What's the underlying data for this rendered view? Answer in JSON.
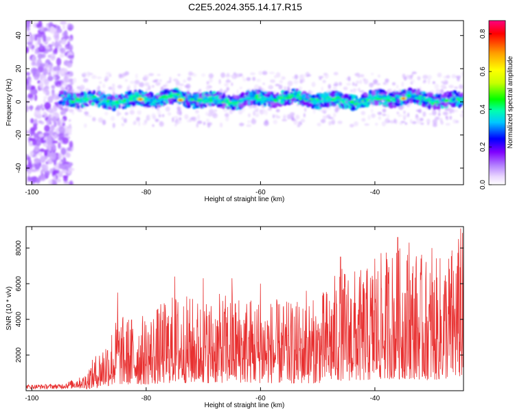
{
  "title": "C2E5.2024.355.14.17.R15",
  "chart_data": [
    {
      "type": "heatmap",
      "xlabel": "Height of straight line (km)",
      "ylabel": "Frequency (Hz)",
      "xlim": [
        -101,
        -24.5
      ],
      "ylim": [
        -50,
        49
      ],
      "xticks": [
        -100,
        -80,
        -60,
        -40
      ],
      "xtick_labels": [
        "-100",
        "-80",
        "-60",
        "-40"
      ],
      "yticks": [
        -40,
        -20,
        0,
        20,
        40
      ],
      "ytick_labels": [
        "-40",
        "-20",
        "0",
        "20",
        "40"
      ],
      "colorbar": {
        "label": "Normalized spectral amplitude",
        "range": [
          0,
          0.87
        ],
        "ticks": [
          0.0,
          0.2,
          0.4,
          0.6,
          0.8
        ],
        "tick_labels": [
          "0.0",
          "0.2",
          "0.4",
          "0.6",
          "0.8"
        ],
        "colormap": [
          "#ffffff",
          "#e9d6ff",
          "#b27dff",
          "#7f00ff",
          "#0000ff",
          "#00c8ff",
          "#00ffb0",
          "#00ff00",
          "#c8ff00",
          "#ffff00",
          "#ffa000",
          "#ff0000",
          "#ff0080"
        ]
      },
      "band": {
        "center_hz": 1.5,
        "half_width_hz": 4,
        "start_km": -95,
        "peak_points": [
          [
            -81,
            1.5
          ],
          [
            -74,
            1.0
          ],
          [
            -35,
            2.0
          ]
        ]
      },
      "grid": false
    },
    {
      "type": "line",
      "xlabel": "Height of straight line (km)",
      "ylabel": "SNR (10 * v/v)",
      "xlim": [
        -101,
        -24.5
      ],
      "ylim": [
        0,
        9200
      ],
      "xticks": [
        -100,
        -80,
        -60,
        -40
      ],
      "xtick_labels": [
        "-100",
        "-80",
        "-60",
        "-40"
      ],
      "yticks": [
        2000,
        4000,
        6000,
        8000
      ],
      "ytick_labels": [
        "2000",
        "4000",
        "6000",
        "8000"
      ],
      "line_color": "#e83030",
      "envelope": [
        [
          -101,
          300
        ],
        [
          -95,
          350
        ],
        [
          -91,
          900
        ],
        [
          -88,
          2500
        ],
        [
          -85,
          4200
        ],
        [
          -80,
          4300
        ],
        [
          -75,
          5500
        ],
        [
          -70,
          5200
        ],
        [
          -65,
          5600
        ],
        [
          -60,
          5300
        ],
        [
          -55,
          5000
        ],
        [
          -50,
          5200
        ],
        [
          -46,
          7000
        ],
        [
          -42,
          6800
        ],
        [
          -38,
          8000
        ],
        [
          -34,
          8200
        ],
        [
          -30,
          7200
        ],
        [
          -26,
          8400
        ],
        [
          -24.5,
          9200
        ]
      ],
      "peaks": [
        [
          -85,
          5500
        ],
        [
          -75,
          6400
        ],
        [
          -70,
          6300
        ],
        [
          -65,
          6300
        ],
        [
          -60,
          6000
        ],
        [
          -52,
          5600
        ],
        [
          -46,
          7500
        ],
        [
          -40,
          7400
        ],
        [
          -36,
          8600
        ],
        [
          -34,
          8300
        ],
        [
          -30,
          8000
        ],
        [
          -25,
          9100
        ]
      ],
      "grid": false
    }
  ]
}
